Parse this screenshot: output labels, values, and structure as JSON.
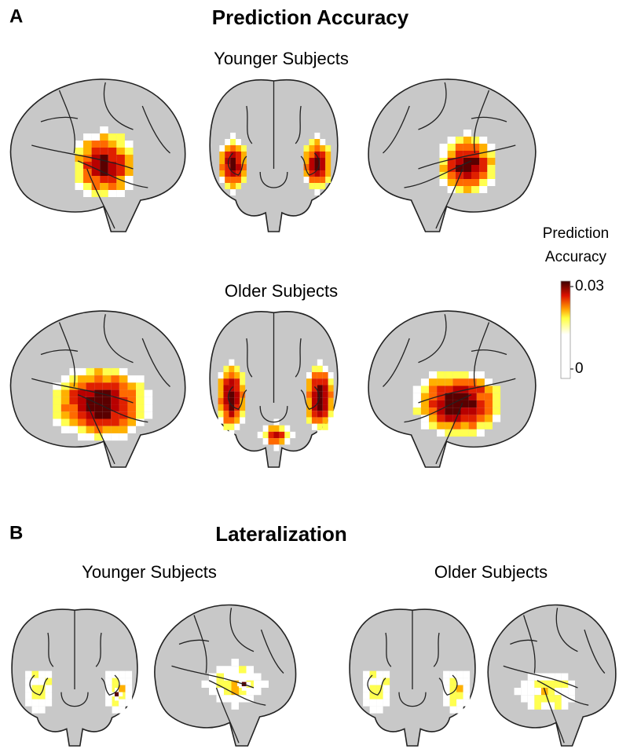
{
  "panel_a": {
    "letter": "A",
    "title": "Prediction Accuracy",
    "rows": [
      "Younger Subjects",
      "Older Subjects"
    ]
  },
  "colorbar": {
    "label": [
      "Prediction",
      "Accuracy"
    ],
    "ticks": [
      0,
      0.03
    ]
  },
  "panel_b": {
    "letter": "B",
    "title": "Lateralization",
    "groups": [
      "Younger Subjects",
      "Older Subjects"
    ]
  }
}
